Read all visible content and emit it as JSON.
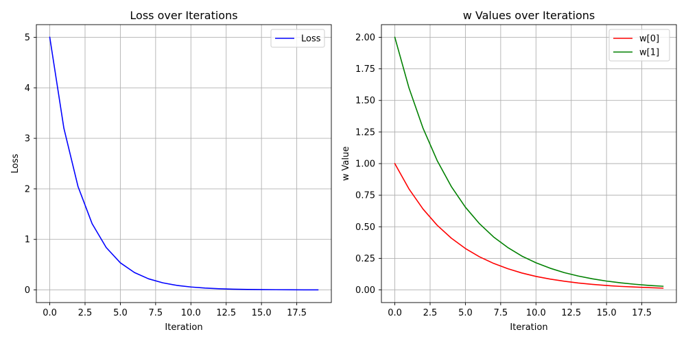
{
  "chart_data": [
    {
      "type": "line",
      "title": "Loss over Iterations",
      "xlabel": "Iteration",
      "ylabel": "Loss",
      "xlim": [
        -0.95,
        19.95
      ],
      "ylim": [
        -0.25,
        5.25
      ],
      "xticks": [
        0,
        2.5,
        5,
        7.5,
        10,
        12.5,
        15,
        17.5
      ],
      "xtick_labels": [
        "0.0",
        "2.5",
        "5.0",
        "7.5",
        "10.0",
        "12.5",
        "15.0",
        "17.5"
      ],
      "yticks": [
        0,
        1,
        2,
        3,
        4,
        5
      ],
      "ytick_labels": [
        "0",
        "1",
        "2",
        "3",
        "4",
        "5"
      ],
      "grid": true,
      "legend_position": "top-right",
      "x": [
        0,
        1,
        2,
        3,
        4,
        5,
        6,
        7,
        8,
        9,
        10,
        11,
        12,
        13,
        14,
        15,
        16,
        17,
        18,
        19
      ],
      "series": [
        {
          "name": "Loss",
          "color": "#0000ff",
          "values": [
            5.0,
            3.2,
            2.048,
            1.311,
            0.839,
            0.537,
            0.344,
            0.22,
            0.141,
            0.09,
            0.058,
            0.037,
            0.024,
            0.015,
            0.01,
            0.006,
            0.004,
            0.003,
            0.002,
            0.001
          ]
        }
      ]
    },
    {
      "type": "line",
      "title": "w Values over Iterations",
      "xlabel": "Iteration",
      "ylabel": "w Value",
      "xlim": [
        -0.95,
        19.95
      ],
      "ylim": [
        -0.1,
        2.1
      ],
      "xticks": [
        0,
        2.5,
        5,
        7.5,
        10,
        12.5,
        15,
        17.5
      ],
      "xtick_labels": [
        "0.0",
        "2.5",
        "5.0",
        "7.5",
        "10.0",
        "12.5",
        "15.0",
        "17.5"
      ],
      "yticks": [
        0,
        0.25,
        0.5,
        0.75,
        1,
        1.25,
        1.5,
        1.75,
        2
      ],
      "ytick_labels": [
        "0.00",
        "0.25",
        "0.50",
        "0.75",
        "1.00",
        "1.25",
        "1.50",
        "1.75",
        "2.00"
      ],
      "grid": true,
      "legend_position": "top-right",
      "x": [
        0,
        1,
        2,
        3,
        4,
        5,
        6,
        7,
        8,
        9,
        10,
        11,
        12,
        13,
        14,
        15,
        16,
        17,
        18,
        19
      ],
      "series": [
        {
          "name": "w[0]",
          "color": "#ff0000",
          "values": [
            1.0,
            0.8,
            0.64,
            0.512,
            0.41,
            0.328,
            0.262,
            0.21,
            0.168,
            0.134,
            0.107,
            0.086,
            0.069,
            0.055,
            0.044,
            0.035,
            0.028,
            0.023,
            0.018,
            0.014
          ]
        },
        {
          "name": "w[1]",
          "color": "#008000",
          "values": [
            2.0,
            1.6,
            1.28,
            1.024,
            0.819,
            0.655,
            0.524,
            0.419,
            0.336,
            0.268,
            0.215,
            0.172,
            0.137,
            0.11,
            0.088,
            0.07,
            0.056,
            0.045,
            0.036,
            0.029
          ]
        }
      ]
    }
  ]
}
